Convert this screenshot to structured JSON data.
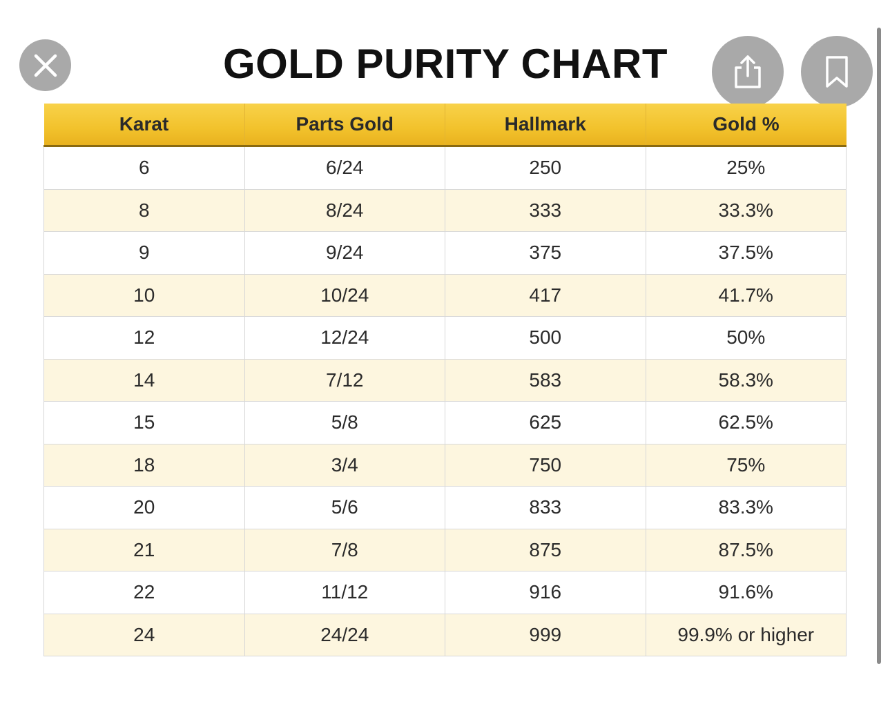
{
  "title": "GOLD PURITY CHART",
  "buttons": {
    "close_icon": "close-icon",
    "share_icon": "share-icon",
    "bookmark_icon": "bookmark-icon"
  },
  "colors": {
    "header_gold": "#f2c22c",
    "alt_row": "#fdf6df",
    "button_gray": "#969696"
  },
  "table": {
    "headers": [
      "Karat",
      "Parts Gold",
      "Hallmark",
      "Gold %"
    ],
    "rows": [
      [
        "6",
        "6/24",
        "250",
        "25%"
      ],
      [
        "8",
        "8/24",
        "333",
        "33.3%"
      ],
      [
        "9",
        "9/24",
        "375",
        "37.5%"
      ],
      [
        "10",
        "10/24",
        "417",
        "41.7%"
      ],
      [
        "12",
        "12/24",
        "500",
        "50%"
      ],
      [
        "14",
        "7/12",
        "583",
        "58.3%"
      ],
      [
        "15",
        "5/8",
        "625",
        "62.5%"
      ],
      [
        "18",
        "3/4",
        "750",
        "75%"
      ],
      [
        "20",
        "5/6",
        "833",
        "83.3%"
      ],
      [
        "21",
        "7/8",
        "875",
        "87.5%"
      ],
      [
        "22",
        "11/12",
        "916",
        "91.6%"
      ],
      [
        "24",
        "24/24",
        "999",
        "99.9% or higher"
      ]
    ]
  }
}
